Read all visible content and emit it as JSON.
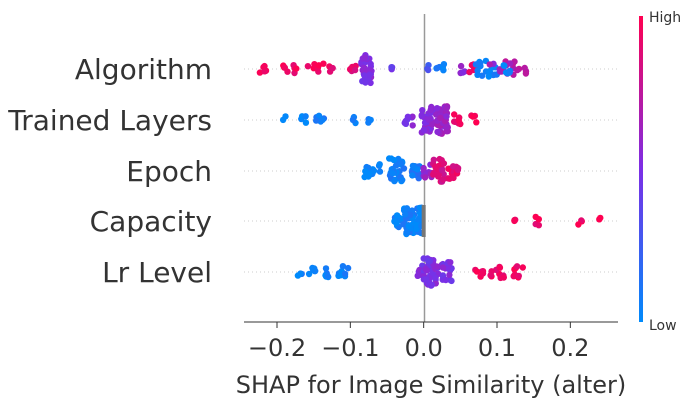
{
  "chart_data": {
    "type": "scatter",
    "subtype": "shap-beeswarm",
    "xlabel": "SHAP for Image Similarity (alter)",
    "xlim": [
      -0.245,
      0.265
    ],
    "xticks": [
      {
        "value": -0.2,
        "label": "−0.2"
      },
      {
        "value": -0.1,
        "label": "−0.1"
      },
      {
        "value": 0.0,
        "label": "0.0"
      },
      {
        "value": 0.1,
        "label": "0.1"
      },
      {
        "value": 0.2,
        "label": "0.2"
      }
    ],
    "zero_line": true,
    "row_gridlines": "dotted",
    "colorbar": {
      "high_label": "High",
      "low_label": "Low",
      "low_color": "#008afb",
      "mid_color": "#7c2ee6",
      "high_color": "#ff0051"
    },
    "features": [
      {
        "name": "Algorithm",
        "clusters": [
          {
            "x": -0.22,
            "f": 0.95,
            "n": 5,
            "w": 0.005
          },
          {
            "x": -0.185,
            "f": 0.95,
            "n": 8,
            "w": 0.012
          },
          {
            "x": -0.14,
            "f": 0.95,
            "n": 10,
            "w": 0.018
          },
          {
            "x": -0.1,
            "f": 0.92,
            "n": 6,
            "w": 0.008
          },
          {
            "x": -0.077,
            "f": 0.5,
            "n": 32,
            "w": 0.008
          },
          {
            "x": -0.045,
            "f": 0.45,
            "n": 3,
            "w": 0.003
          },
          {
            "x": 0.005,
            "f": 0.3,
            "n": 3,
            "w": 0.003
          },
          {
            "x": 0.02,
            "f": 0.05,
            "n": 6,
            "w": 0.008
          },
          {
            "x": 0.052,
            "f": 0.55,
            "n": 4,
            "w": 0.004
          },
          {
            "x": 0.065,
            "f": 0.9,
            "n": 5,
            "w": 0.006
          },
          {
            "x": 0.085,
            "f": 0.05,
            "n": 18,
            "w": 0.015
          },
          {
            "x": 0.1,
            "f": 0.6,
            "n": 8,
            "w": 0.01
          },
          {
            "x": 0.125,
            "f": 0.7,
            "n": 14,
            "w": 0.015
          },
          {
            "x": 0.115,
            "f": 0.05,
            "n": 6,
            "w": 0.006
          }
        ]
      },
      {
        "name": "Trained Layers",
        "clusters": [
          {
            "x": -0.19,
            "f": 0.05,
            "n": 2,
            "w": 0.003
          },
          {
            "x": -0.165,
            "f": 0.05,
            "n": 4,
            "w": 0.005
          },
          {
            "x": -0.14,
            "f": 0.05,
            "n": 6,
            "w": 0.007
          },
          {
            "x": -0.095,
            "f": 0.05,
            "n": 3,
            "w": 0.004
          },
          {
            "x": -0.075,
            "f": 0.05,
            "n": 3,
            "w": 0.003
          },
          {
            "x": -0.02,
            "f": 0.5,
            "n": 8,
            "w": 0.006
          },
          {
            "x": 0.005,
            "f": 0.55,
            "n": 30,
            "w": 0.008
          },
          {
            "x": 0.025,
            "f": 0.6,
            "n": 40,
            "w": 0.008
          },
          {
            "x": 0.045,
            "f": 0.9,
            "n": 8,
            "w": 0.006
          },
          {
            "x": 0.07,
            "f": 0.95,
            "n": 4,
            "w": 0.005
          }
        ]
      },
      {
        "name": "Epoch",
        "clusters": [
          {
            "x": -0.07,
            "f": 0.05,
            "n": 14,
            "w": 0.012
          },
          {
            "x": -0.035,
            "f": 0.05,
            "n": 28,
            "w": 0.012
          },
          {
            "x": -0.01,
            "f": 0.1,
            "n": 14,
            "w": 0.006
          },
          {
            "x": 0.005,
            "f": 0.6,
            "n": 10,
            "w": 0.006
          },
          {
            "x": 0.02,
            "f": 0.85,
            "n": 26,
            "w": 0.008
          },
          {
            "x": 0.04,
            "f": 0.9,
            "n": 16,
            "w": 0.008
          }
        ]
      },
      {
        "name": "Capacity",
        "clusters": [
          {
            "x": -0.035,
            "f": 0.05,
            "n": 10,
            "w": 0.005
          },
          {
            "x": -0.02,
            "f": 0.05,
            "n": 40,
            "w": 0.008
          },
          {
            "x": -0.006,
            "f": 0.05,
            "n": 30,
            "w": 0.004
          },
          {
            "x": 0.125,
            "f": 0.95,
            "n": 3,
            "w": 0.002
          },
          {
            "x": 0.155,
            "f": 0.95,
            "n": 4,
            "w": 0.003
          },
          {
            "x": 0.213,
            "f": 0.95,
            "n": 3,
            "w": 0.003
          },
          {
            "x": 0.24,
            "f": 0.95,
            "n": 2,
            "w": 0.002
          }
        ]
      },
      {
        "name": "Lr Level",
        "clusters": [
          {
            "x": -0.17,
            "f": 0.05,
            "n": 3,
            "w": 0.004
          },
          {
            "x": -0.15,
            "f": 0.05,
            "n": 6,
            "w": 0.008
          },
          {
            "x": -0.13,
            "f": 0.05,
            "n": 6,
            "w": 0.005
          },
          {
            "x": -0.11,
            "f": 0.05,
            "n": 8,
            "w": 0.007
          },
          {
            "x": -0.005,
            "f": 0.5,
            "n": 10,
            "w": 0.008
          },
          {
            "x": 0.01,
            "f": 0.5,
            "n": 40,
            "w": 0.01
          },
          {
            "x": 0.032,
            "f": 0.5,
            "n": 20,
            "w": 0.008
          },
          {
            "x": 0.075,
            "f": 0.95,
            "n": 6,
            "w": 0.006
          },
          {
            "x": 0.1,
            "f": 0.95,
            "n": 10,
            "w": 0.01
          },
          {
            "x": 0.13,
            "f": 0.95,
            "n": 8,
            "w": 0.008
          }
        ]
      }
    ]
  }
}
